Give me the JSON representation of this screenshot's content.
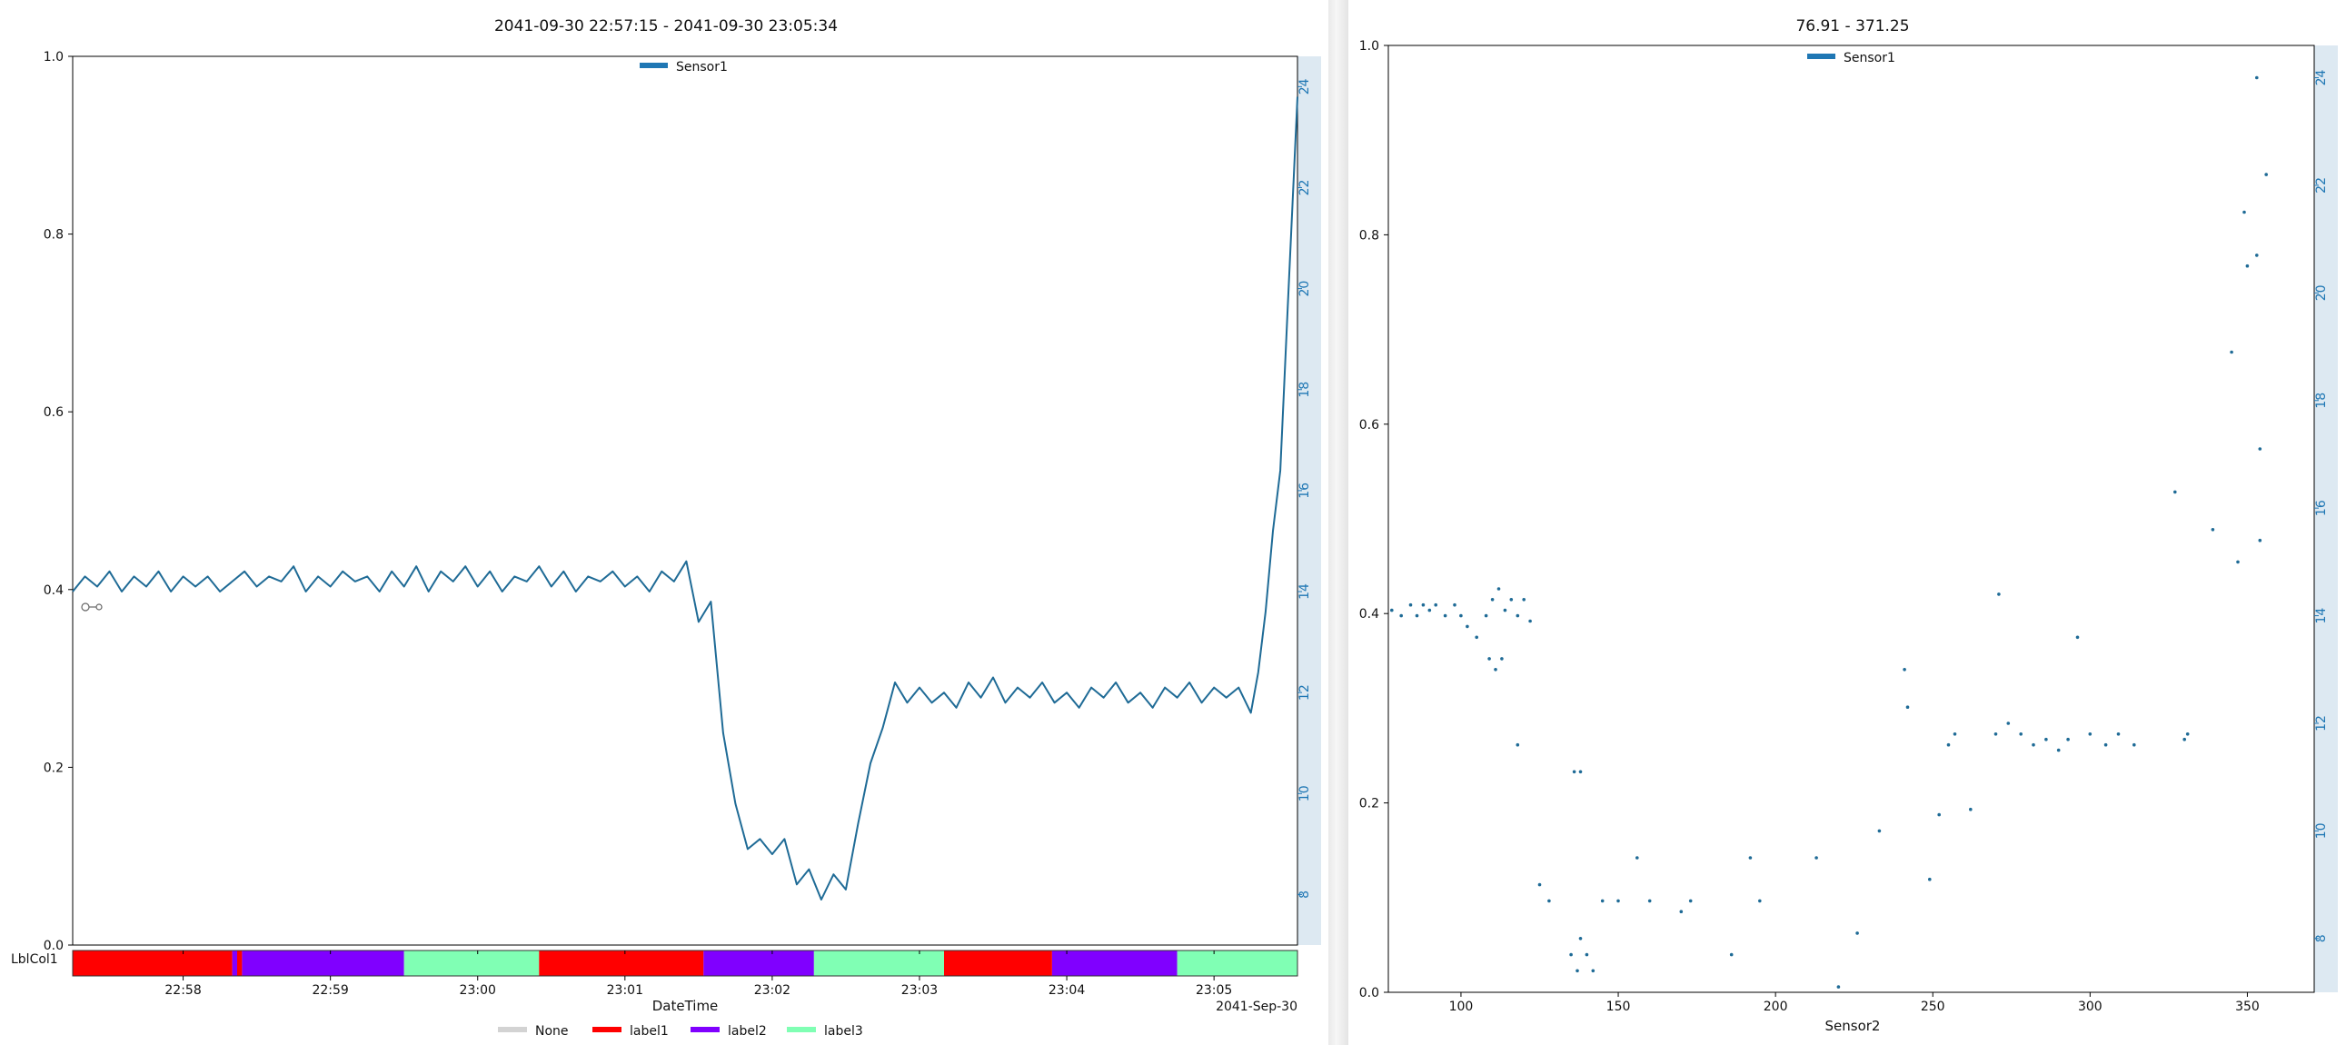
{
  "chart_data": [
    {
      "type": "line",
      "title": "2041-09-30 22:57:15  -  2041-09-30 23:05:34",
      "xlabel": "DateTime",
      "x_range": [
        "2041-09-30 22:57:15",
        "2041-09-30 23:05:34"
      ],
      "x_ticks": [
        "22:58",
        "22:59",
        "23:00",
        "23:01",
        "23:02",
        "23:03",
        "23:04",
        "23:05"
      ],
      "x_offset_label": "2041-Sep-30",
      "ylim": [
        0,
        1
      ],
      "y_ticks": [
        "0.0",
        "0.2",
        "0.4",
        "0.6",
        "0.8",
        "1.0"
      ],
      "y2lim": [
        7.0,
        24.6
      ],
      "y2_ticks": [
        "8",
        "10",
        "12",
        "14",
        "16",
        "18",
        "20",
        "22",
        "24"
      ],
      "legend": {
        "placement": "top-center",
        "entries": [
          "Sensor1"
        ]
      },
      "series": [
        {
          "name": "Sensor1",
          "axis": "right",
          "color": "#1f6b96",
          "points": [
            [
              "22:57:15",
              14.0
            ],
            [
              "22:57:20",
              14.3
            ],
            [
              "22:57:25",
              14.1
            ],
            [
              "22:57:30",
              14.4
            ],
            [
              "22:57:35",
              14.0
            ],
            [
              "22:57:40",
              14.3
            ],
            [
              "22:57:45",
              14.1
            ],
            [
              "22:57:50",
              14.4
            ],
            [
              "22:57:55",
              14.0
            ],
            [
              "22:58:00",
              14.3
            ],
            [
              "22:58:05",
              14.1
            ],
            [
              "22:58:10",
              14.3
            ],
            [
              "22:58:15",
              14.0
            ],
            [
              "22:58:20",
              14.2
            ],
            [
              "22:58:25",
              14.4
            ],
            [
              "22:58:30",
              14.1
            ],
            [
              "22:58:35",
              14.3
            ],
            [
              "22:58:40",
              14.2
            ],
            [
              "22:58:45",
              14.5
            ],
            [
              "22:58:50",
              14.0
            ],
            [
              "22:58:55",
              14.3
            ],
            [
              "22:59:00",
              14.1
            ],
            [
              "22:59:05",
              14.4
            ],
            [
              "22:59:10",
              14.2
            ],
            [
              "22:59:15",
              14.3
            ],
            [
              "22:59:20",
              14.0
            ],
            [
              "22:59:25",
              14.4
            ],
            [
              "22:59:30",
              14.1
            ],
            [
              "22:59:35",
              14.5
            ],
            [
              "22:59:40",
              14.0
            ],
            [
              "22:59:45",
              14.4
            ],
            [
              "22:59:50",
              14.2
            ],
            [
              "22:59:55",
              14.5
            ],
            [
              "23:00:00",
              14.1
            ],
            [
              "23:00:05",
              14.4
            ],
            [
              "23:00:10",
              14.0
            ],
            [
              "23:00:15",
              14.3
            ],
            [
              "23:00:20",
              14.2
            ],
            [
              "23:00:25",
              14.5
            ],
            [
              "23:00:30",
              14.1
            ],
            [
              "23:00:35",
              14.4
            ],
            [
              "23:00:40",
              14.0
            ],
            [
              "23:00:45",
              14.3
            ],
            [
              "23:00:50",
              14.2
            ],
            [
              "23:00:55",
              14.4
            ],
            [
              "23:01:00",
              14.1
            ],
            [
              "23:01:05",
              14.3
            ],
            [
              "23:01:10",
              14.0
            ],
            [
              "23:01:15",
              14.4
            ],
            [
              "23:01:20",
              14.2
            ],
            [
              "23:01:25",
              14.6
            ],
            [
              "23:01:30",
              13.4
            ],
            [
              "23:01:35",
              13.8
            ],
            [
              "23:01:40",
              11.2
            ],
            [
              "23:01:45",
              9.8
            ],
            [
              "23:01:50",
              8.9
            ],
            [
              "23:01:55",
              9.1
            ],
            [
              "23:02:00",
              8.8
            ],
            [
              "23:02:05",
              9.1
            ],
            [
              "23:02:10",
              8.2
            ],
            [
              "23:02:15",
              8.5
            ],
            [
              "23:02:20",
              7.9
            ],
            [
              "23:02:25",
              8.4
            ],
            [
              "23:02:30",
              8.1
            ],
            [
              "23:02:35",
              9.4
            ],
            [
              "23:02:40",
              10.6
            ],
            [
              "23:02:45",
              11.3
            ],
            [
              "23:02:50",
              12.2
            ],
            [
              "23:02:55",
              11.8
            ],
            [
              "23:03:00",
              12.1
            ],
            [
              "23:03:05",
              11.8
            ],
            [
              "23:03:10",
              12.0
            ],
            [
              "23:03:15",
              11.7
            ],
            [
              "23:03:20",
              12.2
            ],
            [
              "23:03:25",
              11.9
            ],
            [
              "23:03:30",
              12.3
            ],
            [
              "23:03:35",
              11.8
            ],
            [
              "23:03:40",
              12.1
            ],
            [
              "23:03:45",
              11.9
            ],
            [
              "23:03:50",
              12.2
            ],
            [
              "23:03:55",
              11.8
            ],
            [
              "23:04:00",
              12.0
            ],
            [
              "23:04:05",
              11.7
            ],
            [
              "23:04:10",
              12.1
            ],
            [
              "23:04:15",
              11.9
            ],
            [
              "23:04:20",
              12.2
            ],
            [
              "23:04:25",
              11.8
            ],
            [
              "23:04:30",
              12.0
            ],
            [
              "23:04:35",
              11.7
            ],
            [
              "23:04:40",
              12.1
            ],
            [
              "23:04:45",
              11.9
            ],
            [
              "23:04:50",
              12.2
            ],
            [
              "23:04:55",
              11.8
            ],
            [
              "23:05:00",
              12.1
            ],
            [
              "23:05:05",
              11.9
            ],
            [
              "23:05:10",
              12.1
            ],
            [
              "23:05:15",
              11.6
            ],
            [
              "23:05:18",
              12.4
            ],
            [
              "23:05:21",
              13.6
            ],
            [
              "23:05:24",
              15.2
            ],
            [
              "23:05:27",
              16.4
            ],
            [
              "23:05:30",
              19.6
            ],
            [
              "23:05:34",
              23.8
            ]
          ]
        }
      ],
      "label_track": {
        "title": "LblCol1",
        "segments": [
          [
            "22:57:15",
            "22:58:20",
            "label1"
          ],
          [
            "22:58:20",
            "22:58:22",
            "label2"
          ],
          [
            "22:58:22",
            "22:58:24",
            "label1"
          ],
          [
            "22:58:24",
            "22:59:30",
            "label2"
          ],
          [
            "22:59:30",
            "23:00:25",
            "label3"
          ],
          [
            "23:00:25",
            "23:01:32",
            "label1"
          ],
          [
            "23:01:32",
            "23:02:17",
            "label2"
          ],
          [
            "23:02:17",
            "23:03:10",
            "label3"
          ],
          [
            "23:03:10",
            "23:03:54",
            "label1"
          ],
          [
            "23:03:54",
            "23:04:45",
            "label2"
          ],
          [
            "23:04:45",
            "23:05:34",
            "label3"
          ]
        ]
      },
      "label_legend": [
        {
          "name": "None",
          "color": "#d3d3d3"
        },
        {
          "name": "label1",
          "color": "#ff0000"
        },
        {
          "name": "label2",
          "color": "#8000ff"
        },
        {
          "name": "label3",
          "color": "#80ffb4"
        }
      ]
    },
    {
      "type": "scatter",
      "title": "76.91  -  371.25",
      "xlabel": "Sensor2",
      "xlim": [
        76.91,
        371.25
      ],
      "x_ticks": [
        "100",
        "150",
        "200",
        "250",
        "300",
        "350"
      ],
      "ylim": [
        0,
        1
      ],
      "y_ticks": [
        "0.0",
        "0.2",
        "0.4",
        "0.6",
        "0.8",
        "1.0"
      ],
      "y2lim": [
        7.0,
        24.6
      ],
      "y2_ticks": [
        "8",
        "10",
        "12",
        "14",
        "16",
        "18",
        "20",
        "22",
        "24"
      ],
      "legend": {
        "placement": "top-center",
        "entries": [
          "Sensor1"
        ]
      },
      "series": [
        {
          "name": "Sensor1",
          "axis": "right",
          "color": "#1f6b96",
          "points": [
            [
              78,
              14.1
            ],
            [
              81,
              14.0
            ],
            [
              84,
              14.2
            ],
            [
              86,
              14.0
            ],
            [
              88,
              14.2
            ],
            [
              90,
              14.1
            ],
            [
              92,
              14.2
            ],
            [
              95,
              14.0
            ],
            [
              98,
              14.2
            ],
            [
              100,
              14.0
            ],
            [
              102,
              13.8
            ],
            [
              105,
              13.6
            ],
            [
              108,
              14.0
            ],
            [
              110,
              14.3
            ],
            [
              112,
              14.5
            ],
            [
              114,
              14.1
            ],
            [
              116,
              14.3
            ],
            [
              118,
              14.0
            ],
            [
              120,
              14.3
            ],
            [
              122,
              13.9
            ],
            [
              109,
              13.2
            ],
            [
              111,
              13.0
            ],
            [
              113,
              13.2
            ],
            [
              118,
              11.6
            ],
            [
              125,
              9.0
            ],
            [
              128,
              8.7
            ],
            [
              135,
              7.7
            ],
            [
              137,
              7.4
            ],
            [
              138,
              8.0
            ],
            [
              140,
              7.7
            ],
            [
              142,
              7.4
            ],
            [
              136,
              11.1
            ],
            [
              138,
              11.1
            ],
            [
              145,
              8.7
            ],
            [
              150,
              8.7
            ],
            [
              156,
              9.5
            ],
            [
              160,
              8.7
            ],
            [
              170,
              8.5
            ],
            [
              173,
              8.7
            ],
            [
              186,
              7.7
            ],
            [
              192,
              9.5
            ],
            [
              195,
              8.7
            ],
            [
              213,
              9.5
            ],
            [
              220,
              7.1
            ],
            [
              226,
              8.1
            ],
            [
              233,
              10.0
            ],
            [
              241,
              13.0
            ],
            [
              242,
              12.3
            ],
            [
              249,
              9.1
            ],
            [
              252,
              10.3
            ],
            [
              255,
              11.6
            ],
            [
              257,
              11.8
            ],
            [
              262,
              10.4
            ],
            [
              270,
              11.8
            ],
            [
              271,
              14.4
            ],
            [
              274,
              12.0
            ],
            [
              278,
              11.8
            ],
            [
              282,
              11.6
            ],
            [
              286,
              11.7
            ],
            [
              290,
              11.5
            ],
            [
              293,
              11.7
            ],
            [
              296,
              13.6
            ],
            [
              300,
              11.8
            ],
            [
              305,
              11.6
            ],
            [
              309,
              11.8
            ],
            [
              314,
              11.6
            ],
            [
              327,
              16.3
            ],
            [
              330,
              11.7
            ],
            [
              331,
              11.8
            ],
            [
              339,
              15.6
            ],
            [
              345,
              18.9
            ],
            [
              347,
              15.0
            ],
            [
              349,
              21.5
            ],
            [
              350,
              20.5
            ],
            [
              353,
              24.0
            ],
            [
              353,
              20.7
            ],
            [
              354,
              17.1
            ],
            [
              354,
              15.4
            ],
            [
              356,
              22.2
            ]
          ]
        }
      ]
    }
  ]
}
